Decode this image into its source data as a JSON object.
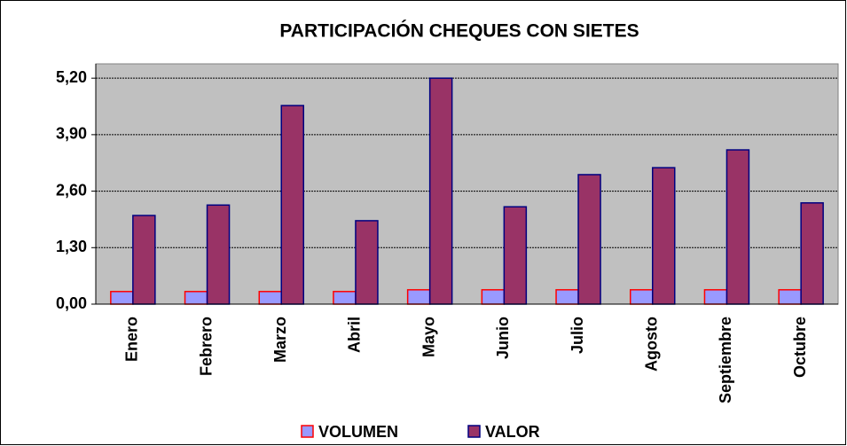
{
  "chart_data": {
    "type": "bar",
    "title": "PARTICIPACIÓN CHEQUES CON SIETES",
    "categories": [
      "Enero",
      "Febrero",
      "Marzo",
      "Abril",
      "Mayo",
      "Junio",
      "Julio",
      "Agosto",
      "Septiembre",
      "Octubre"
    ],
    "series": [
      {
        "name": "VOLUMEN",
        "color": "#9999ff",
        "border": "#ff0000",
        "values": [
          0.29,
          0.29,
          0.29,
          0.29,
          0.33,
          0.33,
          0.33,
          0.33,
          0.33,
          0.33
        ]
      },
      {
        "name": "VALOR",
        "color": "#993366",
        "border": "#000080",
        "values": [
          2.04,
          2.28,
          4.57,
          1.92,
          5.2,
          2.24,
          2.98,
          3.14,
          3.55,
          2.33
        ]
      }
    ],
    "ylim": [
      0,
      5.53
    ],
    "yticks": [
      {
        "value": 0,
        "label": "0,00"
      },
      {
        "value": 1.3,
        "label": "1,30"
      },
      {
        "value": 2.6,
        "label": "2,60"
      },
      {
        "value": 3.9,
        "label": "3,90"
      },
      {
        "value": 5.2,
        "label": "5,20"
      }
    ],
    "grid": true,
    "legend": "bottom"
  }
}
